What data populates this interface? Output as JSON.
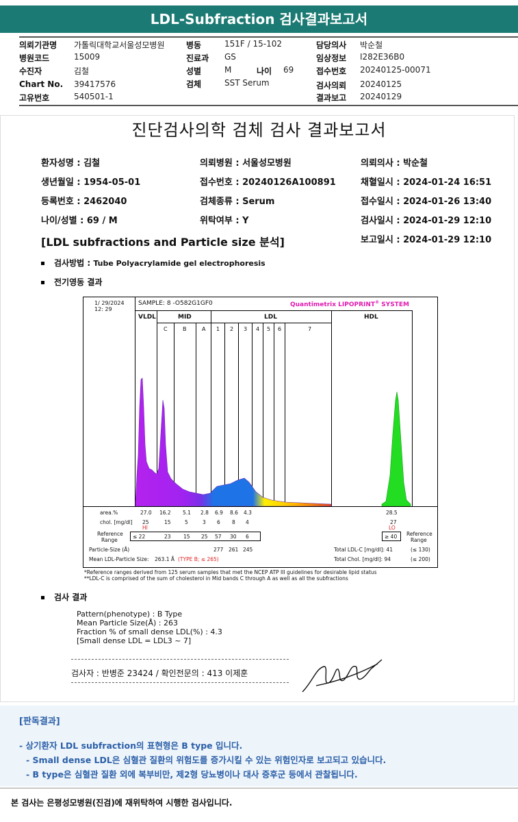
{
  "header": {
    "title": "LDL-Subfraction 검사결과보고서"
  },
  "info": {
    "r1": [
      {
        "k": "의뢰기관명",
        "v": "가톨릭대학교서울성모병원"
      },
      {
        "k": "병동",
        "v": "151F / 15-102"
      },
      {
        "k": "담당의사",
        "v": "박순철"
      }
    ],
    "r2": [
      {
        "k": "병원코드",
        "v": "15009"
      },
      {
        "k": "진료과",
        "v": "GS"
      },
      {
        "k": "임상정보",
        "v": "I282E36B0"
      }
    ],
    "r3": [
      {
        "k": "수진자",
        "v": "김철"
      },
      {
        "k": "성별",
        "v": "M"
      },
      {
        "k": "나이",
        "v": "69"
      },
      {
        "k": "접수번호",
        "v": "20240125-00071"
      }
    ],
    "r4": [
      {
        "k": "Chart No.",
        "v": "39417576"
      },
      {
        "k": "검체",
        "v": "SST Serum"
      },
      {
        "k": "검사의뢰",
        "v": "20240125"
      }
    ],
    "r5": [
      {
        "k": "고유번호",
        "v": "540501-1"
      },
      {
        "k": "결과보고",
        "v": "20240129"
      }
    ]
  },
  "report": {
    "title": "진단검사의학 검체 검사 결과보고서",
    "c1": [
      "환자성명 : 김철",
      "생년월일 : 1954-05-01",
      "등록번호 : 2462040",
      "나이/성별 : 69 / M"
    ],
    "c2": [
      "의뢰병원 : 서울성모병원",
      "접수번호 : 20240126A100891",
      "검체종류 : Serum",
      "위탁여부 : Y"
    ],
    "c3": [
      "의뢰의사 : 박순철",
      "채혈일시 : 2024-01-24 16:51",
      "접수일시 : 2024-01-26 13:40",
      "검사일시 : 2024-01-29 12:10",
      "보고일시 : 2024-01-29 12:10"
    ],
    "subtitle": "[LDL subfractions and Particle size 분석]",
    "method_label": "검사방법 : ",
    "method": "Tube Polyacrylamide gel electrophoresis",
    "electro": "전기영동 결과",
    "result_label": "검사 결과",
    "results": [
      "Pattern(phenotype) : B Type",
      "Mean Particle Size(Å) : 263",
      "Fraction % of small dense LDL(%) : 4.3",
      "[Small dense LDL = LDL3 ~ 7]"
    ],
    "examiner": "검사자 : 반병준  23424  /  확인전문의 : 413  이제훈",
    "signature": "Jamhi"
  },
  "chart_data": {
    "type": "area",
    "date": "1/ 29/2024",
    "time": "12: 29",
    "sample": "SAMPLE:   8 -O582G1GF0",
    "brand": "Quantimetrix LIPOPRINT",
    "brand_r": "®",
    "brand_sys": " SYSTEM",
    "groups": [
      "VLDL",
      "MID",
      "LDL",
      "HDL"
    ],
    "bands": [
      "C",
      "B",
      "A",
      "1",
      "2",
      "3",
      "4",
      "5",
      "6",
      "7"
    ],
    "row_labels": [
      "area.%",
      "chol. [mg/dl]",
      "Reference",
      "Range",
      "Particle-Size (Å)",
      "Mean LDL-Particle Size:"
    ],
    "area": [
      "27.0",
      "16.2",
      "5.1",
      "2.8",
      "6.9",
      "8.6",
      "4.3",
      "28.5"
    ],
    "chol": [
      "25",
      "15",
      "5",
      "3",
      "6",
      "8",
      "4",
      "27"
    ],
    "flags": [
      "HI",
      "LO"
    ],
    "ref": [
      "≤ 22",
      "23",
      "15",
      "25",
      "57",
      "30",
      "6",
      "≥ 40"
    ],
    "ref_r": [
      "Reference",
      "Range"
    ],
    "sizes": [
      "277",
      "261",
      "245"
    ],
    "mean_size": "263.1 Å",
    "type_b": "(TYPE B; ≤ 265)",
    "total_ldl": "Total LDL-C [mg/dl]: 41",
    "total_ldl_r": "(≤ 130)",
    "total_chol": "Total Chol. [mg/dl]:    94",
    "total_chol_r": "(≤ 200)",
    "colors": {
      "vldl": "#b522ee",
      "mid": "#8a2be2",
      "blue": "#1e74e6",
      "yellow": "#ffee00",
      "orange": "#ffb000",
      "red": "#e04020",
      "hdl": "#22dd22"
    }
  },
  "footnotes": [
    "*Reference ranges derived from 125 serum samples that met the NCEP ATP III guidelines for desirable lipid status",
    "**LDL-C is comprised of the sum of cholesterol in Mid bands C through A as well as all the subfractions"
  ],
  "interp": {
    "label": "[판독결과]",
    "lines": [
      "- 상기환자 LDL subfraction의 표현형은 B type 입니다.",
      "-  Small dense LDL은 심혈관 질환의 위험도를 증가시킬 수 있는 위험인자로 보고되고 있습니다.",
      "-  B type은 심혈관 질환 외에 복부비만, 제2형 당뇨병이나 대사 증후군 등에서 관찰됩니다."
    ]
  },
  "footer": "본 검사는 은평성모병원(진검)에 재위탁하여 시행한 검사입니다."
}
